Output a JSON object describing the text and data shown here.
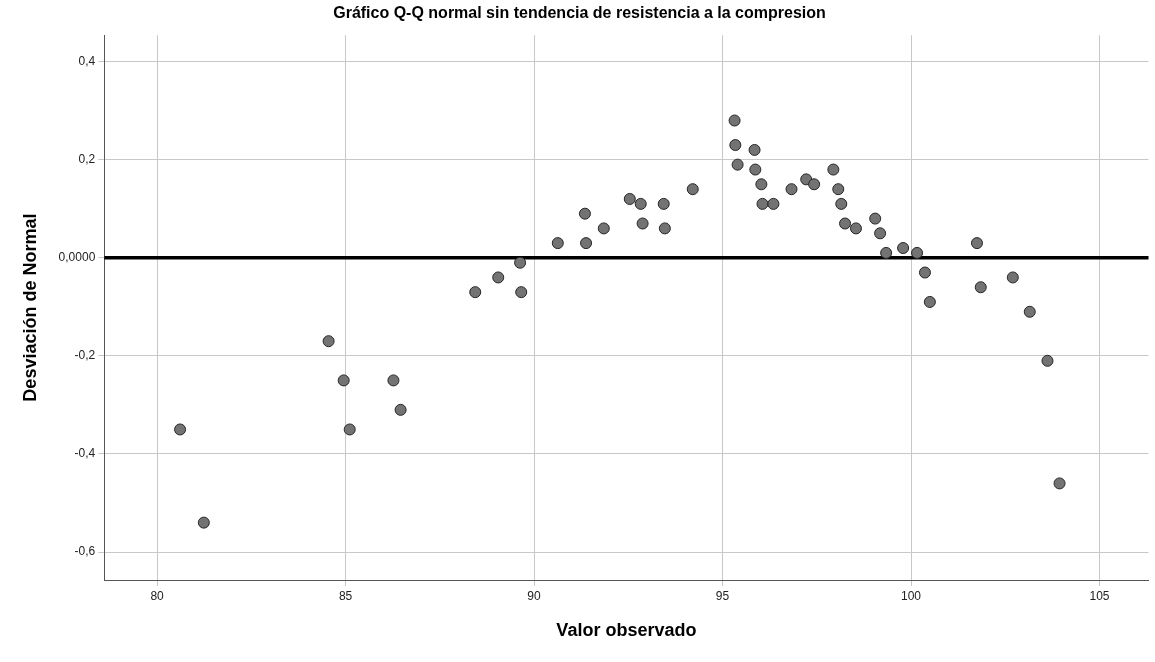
{
  "chart_data": {
    "type": "scatter",
    "title": "Gráfico Q-Q normal sin tendencia de resistencia a la compresion",
    "xlabel": "Valor observado",
    "ylabel": "Desviación de Normal",
    "x": [
      80.61,
      81.24,
      84.55,
      84.95,
      85.11,
      86.27,
      86.46,
      88.44,
      89.05,
      89.63,
      89.66,
      90.63,
      91.35,
      91.38,
      91.85,
      92.54,
      92.83,
      92.88,
      93.44,
      93.47,
      94.21,
      95.32,
      95.34,
      95.4,
      95.85,
      95.87,
      96.03,
      96.06,
      96.35,
      96.83,
      97.22,
      97.43,
      97.94,
      98.07,
      98.15,
      98.25,
      98.54,
      99.05,
      99.18,
      99.34,
      99.79,
      100.16,
      100.37,
      100.5,
      101.75,
      101.85,
      102.7,
      103.15,
      103.62,
      103.94
    ],
    "series": [
      {
        "color": "#737373",
        "values": [
          -0.35,
          -0.54,
          -0.17,
          -0.25,
          -0.35,
          -0.25,
          -0.31,
          -0.07,
          -0.04,
          -0.01,
          -0.07,
          0.03,
          0.09,
          0.03,
          0.06,
          0.12,
          0.11,
          0.07,
          0.11,
          0.06,
          0.14,
          0.28,
          0.23,
          0.19,
          0.22,
          0.18,
          0.15,
          0.11,
          0.11,
          0.14,
          0.16,
          0.15,
          0.18,
          0.14,
          0.11,
          0.07,
          0.06,
          0.08,
          0.05,
          0.01,
          0.02,
          0.01,
          -0.03,
          -0.09,
          0.03,
          -0.06,
          -0.04,
          -0.11,
          -0.21,
          -0.46
        ]
      }
    ],
    "xlim": [
      78.6,
      106.3
    ],
    "xticks": [
      80,
      85,
      90,
      95,
      100,
      105
    ],
    "ylim": [
      -0.657,
      0.454
    ],
    "yticks": [
      {
        "value": -0.6,
        "label": "-0,6"
      },
      {
        "value": -0.4,
        "label": "-0,4"
      },
      {
        "value": -0.2,
        "label": "-0,2"
      },
      {
        "value": 0,
        "label": "0,0000"
      },
      {
        "value": 0.2,
        "label": "0,2"
      },
      {
        "value": 0.4,
        "label": "0,4"
      }
    ],
    "ref_lines": [
      {
        "axis": "y",
        "value": 0,
        "color": "#000000"
      }
    ],
    "grid": true,
    "marker": "circle",
    "legend": false
  }
}
